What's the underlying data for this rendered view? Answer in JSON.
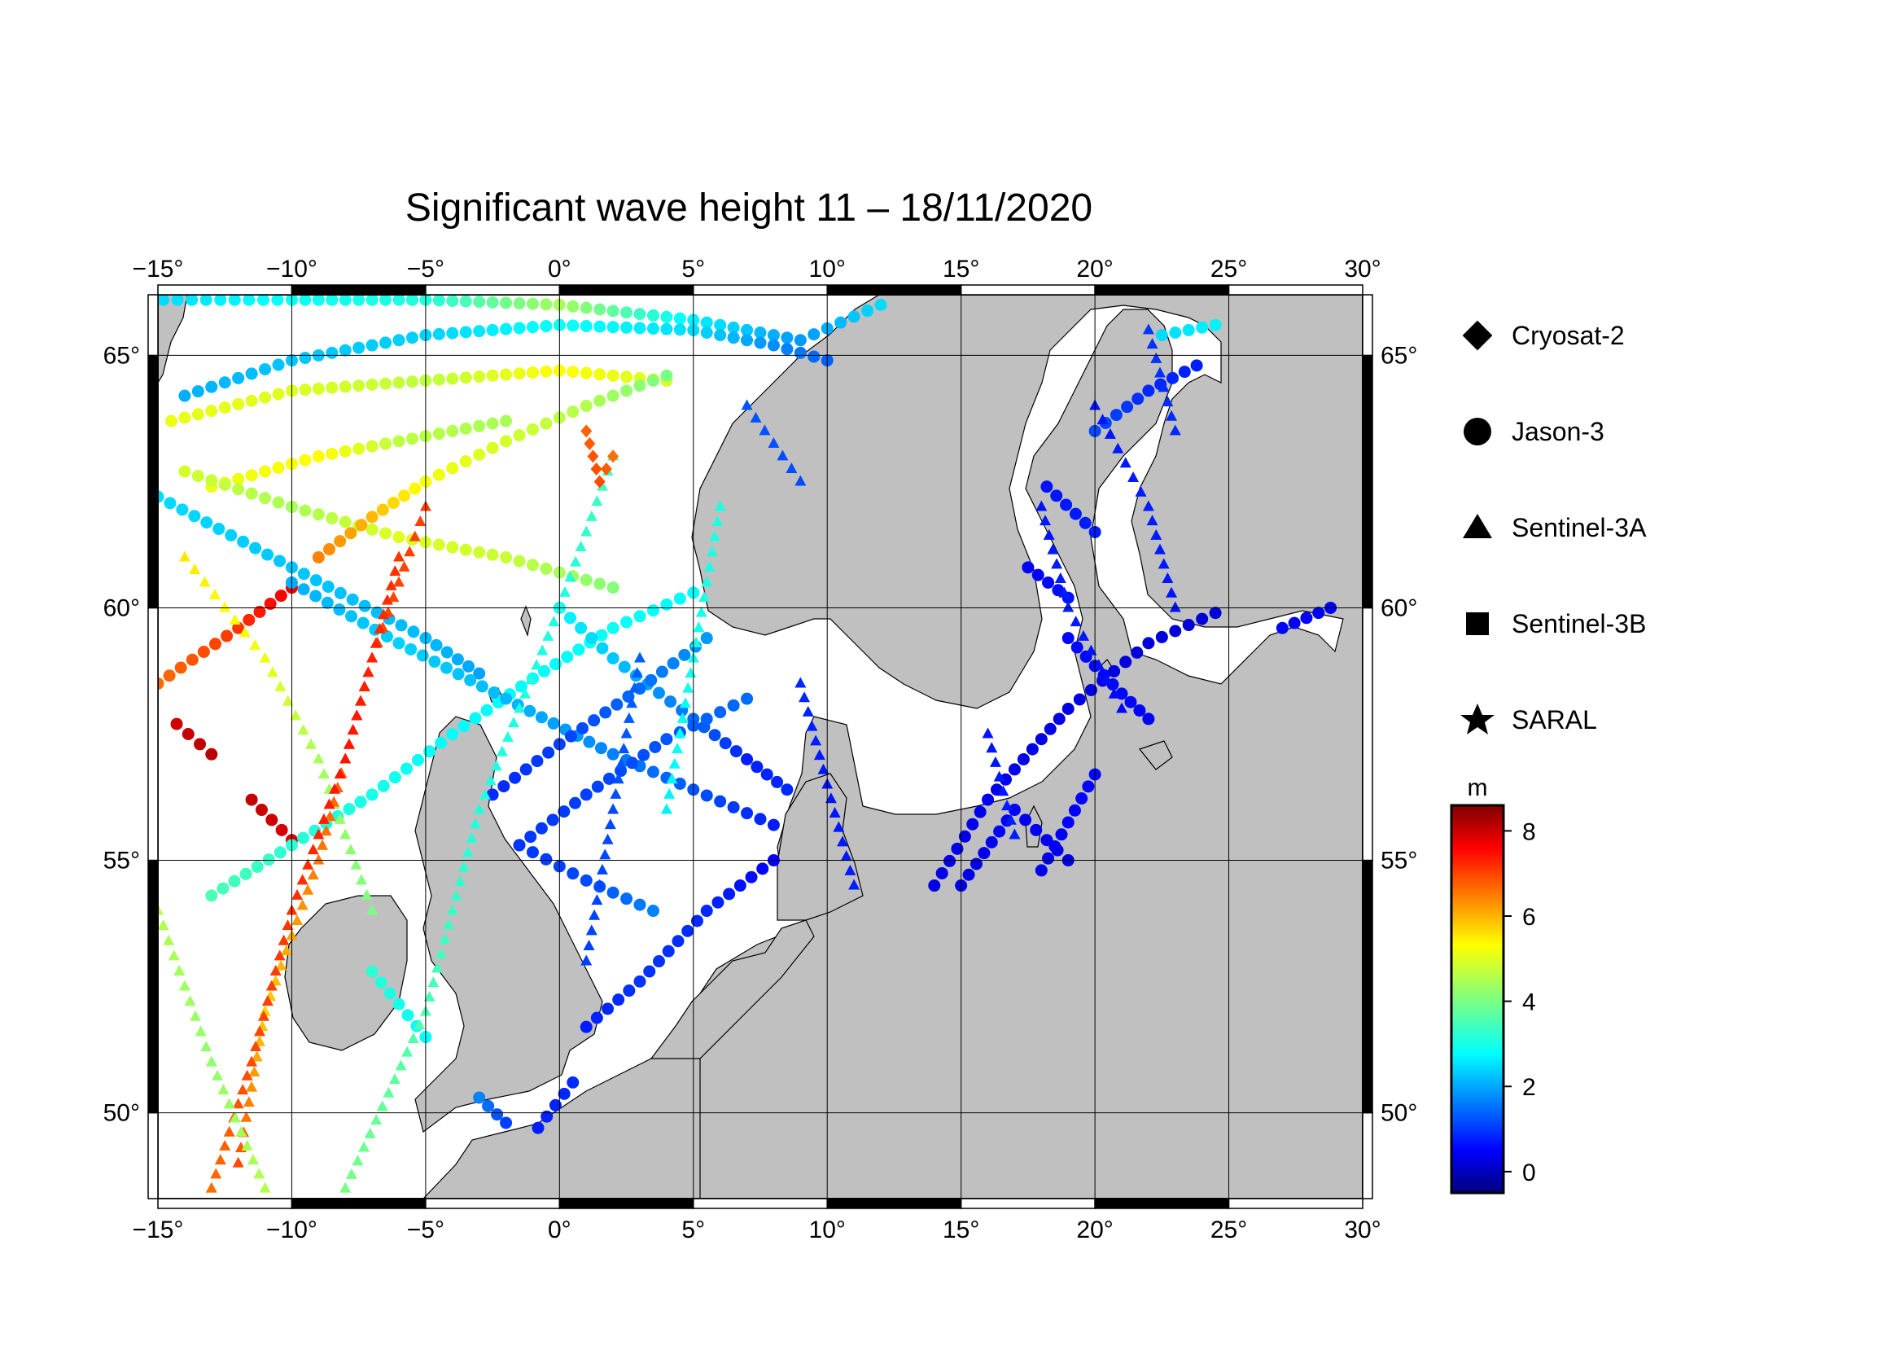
{
  "title": "Significant wave height 11 – 18/11/2020",
  "map": {
    "lon_range": [
      -15,
      30
    ],
    "lat_range": [
      48.3,
      66.2
    ],
    "lon_ticks": [
      -15,
      -10,
      -5,
      0,
      5,
      10,
      15,
      20,
      25,
      30
    ],
    "lat_ticks": [
      50,
      55,
      60,
      65
    ],
    "lon_tick_labels": [
      "−15°",
      "−10°",
      "−5°",
      "0°",
      "5°",
      "10°",
      "15°",
      "20°",
      "25°",
      "30°"
    ],
    "lat_tick_labels": [
      "50°",
      "55°",
      "60°",
      "65°"
    ],
    "land_color": "#c0c0c0",
    "sea_color": "#ffffff"
  },
  "legend": {
    "items": [
      {
        "label": "Cryosat-2",
        "symbol": "diamond"
      },
      {
        "label": "Jason-3",
        "symbol": "circle"
      },
      {
        "label": "Sentinel-3A",
        "symbol": "triangle"
      },
      {
        "label": "Sentinel-3B",
        "symbol": "square"
      },
      {
        "label": "SARAL",
        "symbol": "star"
      }
    ]
  },
  "colorbar": {
    "unit": "m",
    "min": -0.5,
    "max": 8.6,
    "ticks": [
      0,
      2,
      4,
      6,
      8
    ],
    "tick_labels": [
      "0",
      "2",
      "4",
      "6",
      "8"
    ],
    "colormap": "jet"
  },
  "chart_data": {
    "type": "scatter",
    "x_label": "",
    "y_label": "",
    "tracks": [
      {
        "satellite": "Jason-3",
        "symbol": "circle",
        "points": [
          [
            -14.8,
            66.1,
            2.6
          ],
          [
            -10,
            66.1,
            3.0
          ],
          [
            -5,
            66.1,
            3.2
          ],
          [
            0,
            66.0,
            4.4
          ],
          [
            5,
            65.7,
            2.8
          ],
          [
            9,
            65.3,
            2.0
          ],
          [
            12,
            66.0,
            2.6
          ]
        ]
      },
      {
        "satellite": "Jason-3",
        "symbol": "circle",
        "points": [
          [
            -14,
            64.2,
            2.2
          ],
          [
            -10,
            64.9,
            2.4
          ],
          [
            -5,
            65.4,
            2.5
          ],
          [
            0,
            65.6,
            3.0
          ],
          [
            5,
            65.5,
            2.6
          ],
          [
            8,
            65.2,
            1.9
          ],
          [
            10,
            64.9,
            1.5
          ]
        ]
      },
      {
        "satellite": "Jason-3",
        "symbol": "circle",
        "points": [
          [
            -14.5,
            63.7,
            5.0
          ],
          [
            -10,
            64.3,
            4.9
          ],
          [
            -5,
            64.5,
            4.6
          ],
          [
            0,
            64.7,
            5.2
          ],
          [
            4,
            64.5,
            4.8
          ]
        ]
      },
      {
        "satellite": "Jason-3",
        "symbol": "circle",
        "points": [
          [
            -13,
            62.4,
            5.0
          ],
          [
            -9,
            63.0,
            5.2
          ],
          [
            -6,
            63.3,
            4.6
          ],
          [
            -2,
            63.7,
            4.4
          ]
        ]
      },
      {
        "satellite": "Jason-3",
        "symbol": "circle",
        "points": [
          [
            -14,
            62.7,
            4.8
          ],
          [
            -10,
            62.0,
            4.4
          ],
          [
            -6,
            61.4,
            4.9
          ],
          [
            -2,
            61.0,
            4.7
          ],
          [
            2,
            60.4,
            4.1
          ]
        ]
      },
      {
        "satellite": "Jason-3",
        "symbol": "circle",
        "points": [
          [
            -15,
            62.2,
            2.6
          ],
          [
            -10,
            60.8,
            2.4
          ],
          [
            -5,
            59.4,
            2.3
          ],
          [
            -3,
            58.7,
            2.1
          ]
        ]
      },
      {
        "satellite": "Jason-3",
        "symbol": "circle",
        "points": [
          [
            -9,
            61.0,
            6.3
          ],
          [
            -7,
            61.8,
            5.8
          ],
          [
            -5,
            62.5,
            5.1
          ],
          [
            -2,
            63.3,
            4.8
          ],
          [
            1,
            64.0,
            4.5
          ],
          [
            4,
            64.6,
            4.0
          ]
        ]
      },
      {
        "satellite": "Jason-3",
        "symbol": "circle",
        "points": [
          [
            -15,
            58.5,
            6.5
          ],
          [
            -12,
            59.6,
            7.0
          ],
          [
            -10,
            60.4,
            7.6
          ]
        ]
      },
      {
        "satellite": "Jason-3",
        "symbol": "circle",
        "points": [
          [
            -14.3,
            57.7,
            7.9
          ],
          [
            -13,
            57.1,
            8.1
          ]
        ]
      },
      {
        "satellite": "Jason-3",
        "symbol": "circle",
        "points": [
          [
            -11.5,
            56.2,
            8.0
          ],
          [
            -10,
            55.4,
            7.8
          ]
        ]
      },
      {
        "satellite": "Jason-3",
        "symbol": "circle",
        "points": [
          [
            -13,
            54.3,
            3.6
          ],
          [
            -10,
            55.3,
            3.3
          ],
          [
            -7,
            56.3,
            3.1
          ],
          [
            -4,
            57.5,
            2.9
          ],
          [
            -1,
            58.6,
            2.9
          ],
          [
            2,
            59.6,
            3.0
          ],
          [
            5,
            60.3,
            2.9
          ]
        ]
      },
      {
        "satellite": "Jason-3",
        "symbol": "circle",
        "points": [
          [
            -10,
            60.5,
            2.2
          ],
          [
            -6,
            59.3,
            2.5
          ],
          [
            -2,
            58.2,
            2.3
          ],
          [
            2,
            57.1,
            1.8
          ],
          [
            5,
            56.4,
            1.4
          ],
          [
            8,
            55.7,
            0.9
          ]
        ]
      },
      {
        "satellite": "Jason-3",
        "symbol": "circle",
        "points": [
          [
            0,
            60.0,
            2.9
          ],
          [
            2,
            59.0,
            2.4
          ],
          [
            5,
            57.8,
            1.6
          ],
          [
            7,
            57.0,
            0.9
          ],
          [
            8.5,
            56.4,
            1.0
          ]
        ]
      },
      {
        "satellite": "Jason-3",
        "symbol": "circle",
        "points": [
          [
            -2.5,
            56.3,
            1.0
          ],
          [
            0,
            57.3,
            1.2
          ],
          [
            3,
            58.4,
            1.6
          ],
          [
            5.5,
            59.4,
            2.0
          ]
        ]
      },
      {
        "satellite": "Jason-3",
        "symbol": "circle",
        "points": [
          [
            -1.5,
            55.3,
            1.1
          ],
          [
            1,
            56.3,
            1.2
          ],
          [
            4,
            57.4,
            1.4
          ],
          [
            7,
            58.2,
            1.6
          ]
        ]
      },
      {
        "satellite": "Jason-3",
        "symbol": "circle",
        "points": [
          [
            -1.5,
            55.3,
            1.1
          ],
          [
            1,
            54.6,
            1.3
          ],
          [
            3.5,
            54.0,
            1.8
          ]
        ]
      },
      {
        "satellite": "Jason-3",
        "symbol": "circle",
        "points": [
          [
            1,
            51.7,
            0.9
          ],
          [
            3,
            52.6,
            1.1
          ],
          [
            5.5,
            54.0,
            1.0
          ],
          [
            8,
            55.0,
            0.6
          ]
        ]
      },
      {
        "satellite": "Jason-3",
        "symbol": "circle",
        "points": [
          [
            -0.8,
            49.7,
            0.9
          ],
          [
            0.5,
            50.6,
            1.0
          ]
        ]
      },
      {
        "satellite": "Jason-3",
        "symbol": "circle",
        "points": [
          [
            -3,
            50.3,
            1.8
          ],
          [
            -2,
            49.8,
            1.2
          ]
        ]
      },
      {
        "satellite": "Jason-3",
        "symbol": "circle",
        "points": [
          [
            -5,
            51.5,
            2.9
          ],
          [
            -7,
            52.8,
            3.3
          ]
        ]
      },
      {
        "satellite": "Jason-3",
        "symbol": "circle",
        "points": [
          [
            14,
            54.5,
            0.4
          ],
          [
            16,
            56.2,
            0.5
          ],
          [
            19,
            58.0,
            0.4
          ],
          [
            22,
            59.3,
            0.3
          ],
          [
            24.5,
            59.9,
            0.3
          ]
        ]
      },
      {
        "satellite": "Jason-3",
        "symbol": "circle",
        "points": [
          [
            15,
            54.5,
            0.4
          ],
          [
            17,
            56.0,
            0.6
          ],
          [
            19,
            55.0,
            0.4
          ]
        ]
      },
      {
        "satellite": "Jason-3",
        "symbol": "circle",
        "points": [
          [
            18,
            54.8,
            0.5
          ],
          [
            20,
            56.7,
            0.7
          ]
        ]
      },
      {
        "satellite": "Jason-3",
        "symbol": "circle",
        "points": [
          [
            19,
            59.4,
            0.7
          ],
          [
            21,
            58.3,
            0.7
          ],
          [
            22,
            57.8,
            0.6
          ]
        ]
      },
      {
        "satellite": "Jason-3",
        "symbol": "circle",
        "points": [
          [
            17.5,
            60.8,
            0.6
          ],
          [
            19,
            60.2,
            0.8
          ]
        ]
      },
      {
        "satellite": "Jason-3",
        "symbol": "circle",
        "points": [
          [
            18.2,
            62.4,
            0.8
          ],
          [
            20,
            61.5,
            0.9
          ]
        ]
      },
      {
        "satellite": "Jason-3",
        "symbol": "circle",
        "points": [
          [
            20,
            63.5,
            1.3
          ],
          [
            22,
            64.3,
            1.0
          ],
          [
            23.8,
            64.8,
            0.9
          ]
        ]
      },
      {
        "satellite": "Jason-3",
        "symbol": "circle",
        "points": [
          [
            22.5,
            65.4,
            2.6
          ],
          [
            24.5,
            65.6,
            2.8
          ]
        ]
      },
      {
        "satellite": "Jason-3",
        "symbol": "circle",
        "points": [
          [
            27,
            59.6,
            0.7
          ],
          [
            28.8,
            60.0,
            0.5
          ]
        ]
      },
      {
        "satellite": "Sentinel-3A",
        "symbol": "triangle",
        "points": [
          [
            -14,
            61.0,
            5.4
          ],
          [
            -11,
            59.0,
            5.0
          ],
          [
            -9,
            57.0,
            4.4
          ],
          [
            -7,
            54.0,
            4.0
          ]
        ]
      },
      {
        "satellite": "Sentinel-3A",
        "symbol": "triangle",
        "points": [
          [
            -12,
            49.0,
            6.8
          ],
          [
            -11,
            52.0,
            5.6
          ],
          [
            -9,
            55.0,
            6.4
          ],
          [
            -7,
            59.0,
            6.8
          ],
          [
            -5,
            62.0,
            6.9
          ]
        ]
      },
      {
        "satellite": "Sentinel-3A",
        "symbol": "triangle",
        "points": [
          [
            -13,
            48.5,
            6.5
          ],
          [
            -11.5,
            51.0,
            6.8
          ],
          [
            -10,
            54.0,
            7.0
          ],
          [
            -8,
            57.0,
            7.3
          ],
          [
            -6,
            61.0,
            7.0
          ]
        ]
      },
      {
        "satellite": "Sentinel-3A",
        "symbol": "triangle",
        "points": [
          [
            -15,
            54.0,
            4.5
          ],
          [
            -13,
            51.0,
            4.2
          ],
          [
            -11,
            48.5,
            4.5
          ]
        ]
      },
      {
        "satellite": "Sentinel-3A",
        "symbol": "triangle",
        "points": [
          [
            -8,
            48.5,
            4.0
          ],
          [
            -5,
            52.0,
            3.6
          ],
          [
            -3,
            56.0,
            3.2
          ],
          [
            0,
            60.0,
            3.2
          ],
          [
            2,
            63.0,
            3.5
          ]
        ]
      },
      {
        "satellite": "Sentinel-3A",
        "symbol": "triangle",
        "points": [
          [
            1,
            53.0,
            1.2
          ],
          [
            2,
            56.0,
            1.3
          ],
          [
            3,
            59.0,
            1.5
          ]
        ]
      },
      {
        "satellite": "Sentinel-3A",
        "symbol": "triangle",
        "points": [
          [
            4,
            56.0,
            2.8
          ],
          [
            5,
            59.0,
            3.1
          ],
          [
            6,
            62.0,
            3.2
          ]
        ]
      },
      {
        "satellite": "Sentinel-3A",
        "symbol": "triangle",
        "points": [
          [
            9,
            58.5,
            1.0
          ],
          [
            10,
            56.5,
            0.8
          ],
          [
            11,
            54.5,
            0.9
          ]
        ]
      },
      {
        "satellite": "Sentinel-3A",
        "symbol": "triangle",
        "points": [
          [
            16,
            57.5,
            0.8
          ],
          [
            17,
            55.5,
            0.9
          ]
        ]
      },
      {
        "satellite": "Sentinel-3A",
        "symbol": "triangle",
        "points": [
          [
            18,
            62.0,
            0.8
          ],
          [
            19,
            60.0,
            0.9
          ],
          [
            21,
            58.0,
            0.7
          ]
        ]
      },
      {
        "satellite": "Sentinel-3A",
        "symbol": "triangle",
        "points": [
          [
            20,
            64.0,
            0.8
          ],
          [
            22,
            62.0,
            0.9
          ],
          [
            23,
            60.0,
            0.8
          ]
        ]
      },
      {
        "satellite": "Sentinel-3A",
        "symbol": "triangle",
        "points": [
          [
            22,
            65.5,
            1.1
          ],
          [
            23,
            63.5,
            1.0
          ]
        ]
      },
      {
        "satellite": "Sentinel-3A",
        "symbol": "triangle",
        "points": [
          [
            7,
            64.0,
            1.4
          ],
          [
            9,
            62.5,
            1.3
          ]
        ]
      },
      {
        "satellite": "Sentinel-3B",
        "symbol": "square",
        "points": []
      },
      {
        "satellite": "Cryosat-2",
        "symbol": "diamond",
        "points": [
          [
            1,
            63.5,
            6.6
          ],
          [
            1.5,
            62.5,
            6.8
          ],
          [
            2,
            63.0,
            6.5
          ]
        ]
      }
    ]
  }
}
